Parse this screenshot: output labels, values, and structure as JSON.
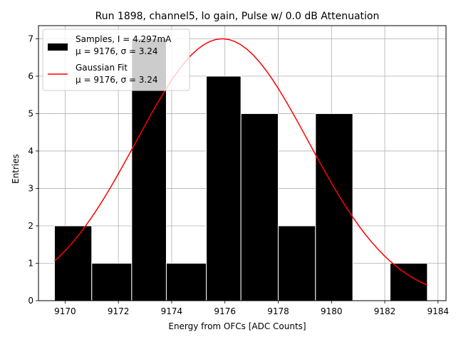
{
  "chart_data": {
    "type": "bar",
    "title": "Run 1898, channel5, lo gain, Pulse w/ 0.0 dB Attenuation",
    "xlabel": "Energy from OFCs [ADC Counts]",
    "ylabel": "Entries",
    "xlim": [
      9169.0,
      9184.3
    ],
    "ylim": [
      0,
      7.35
    ],
    "xticks": [
      9170,
      9172,
      9174,
      9176,
      9178,
      9180,
      9182,
      9184
    ],
    "yticks": [
      0,
      1,
      2,
      3,
      4,
      5,
      6,
      7
    ],
    "grid": true,
    "legend_position": "top-left",
    "bins": [
      {
        "x0": 9169.6,
        "x1": 9171.0,
        "count": 2
      },
      {
        "x0": 9171.0,
        "x1": 9172.5,
        "count": 1
      },
      {
        "x0": 9172.5,
        "x1": 9173.8,
        "count": 7
      },
      {
        "x0": 9173.8,
        "x1": 9175.3,
        "count": 1
      },
      {
        "x0": 9175.3,
        "x1": 9176.6,
        "count": 6
      },
      {
        "x0": 9176.6,
        "x1": 9178.0,
        "count": 5
      },
      {
        "x0": 9178.0,
        "x1": 9179.4,
        "count": 2
      },
      {
        "x0": 9179.4,
        "x1": 9180.8,
        "count": 5
      },
      {
        "x0": 9180.8,
        "x1": 9182.2,
        "count": 0
      },
      {
        "x0": 9182.2,
        "x1": 9183.6,
        "count": 1
      }
    ],
    "fit": {
      "mu": 9175.9,
      "sigma": 3.24,
      "amplitude": 7.0,
      "x_range": [
        9169.6,
        9183.6
      ]
    },
    "series": [
      {
        "name": "Samples, I = 4.297mA",
        "name_line2": "μ = 9176, σ = 3.24",
        "color": "#000000"
      },
      {
        "name": "Gaussian Fit",
        "name_line2": "μ = 9176, σ = 3.24",
        "color": "#ff0000"
      }
    ]
  }
}
